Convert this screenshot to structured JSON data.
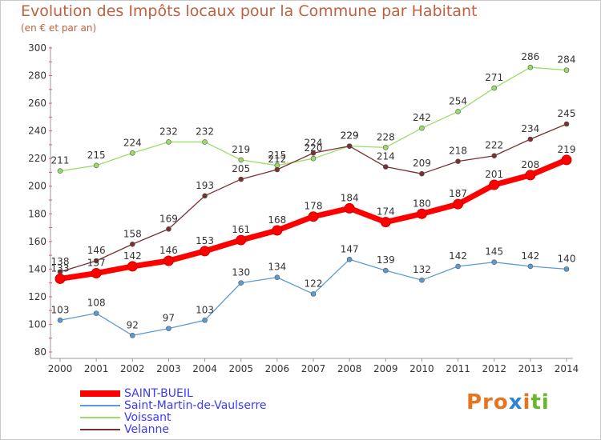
{
  "title": "Evolution des Impôts locaux pour la Commune par Habitant",
  "subtitle": "(en € et par an)",
  "brand": "Proxiti",
  "chart_data": {
    "type": "line",
    "x": [
      "2000",
      "2001",
      "2002",
      "2003",
      "2004",
      "2005",
      "2006",
      "2007",
      "2008",
      "2009",
      "2010",
      "2011",
      "2012",
      "2013",
      "2014"
    ],
    "ylim": [
      80,
      300
    ],
    "yticks": [
      80,
      100,
      120,
      140,
      160,
      180,
      200,
      220,
      240,
      260,
      280,
      300
    ],
    "grid": false,
    "legend_position": "bottom-left",
    "series": [
      {
        "name": "SAINT-BUEIL",
        "color": "#ff0000",
        "values": [
          133,
          137,
          142,
          146,
          153,
          161,
          168,
          178,
          184,
          174,
          180,
          187,
          201,
          208,
          219
        ]
      },
      {
        "name": "Saint-Martin-de-Vaulserre",
        "color": "#5b9bd5",
        "values": [
          103,
          108,
          92,
          97,
          103,
          130,
          134,
          122,
          147,
          139,
          132,
          142,
          145,
          142,
          140
        ]
      },
      {
        "name": "Voissant",
        "color": "#99dd66",
        "values": [
          211,
          215,
          224,
          232,
          232,
          219,
          215,
          220,
          229,
          228,
          242,
          254,
          271,
          286,
          284
        ]
      },
      {
        "name": "Velanne",
        "color": "#7a3030",
        "values": [
          138,
          146,
          158,
          169,
          193,
          205,
          212,
          224,
          229,
          214,
          209,
          218,
          222,
          234,
          245
        ]
      }
    ]
  }
}
